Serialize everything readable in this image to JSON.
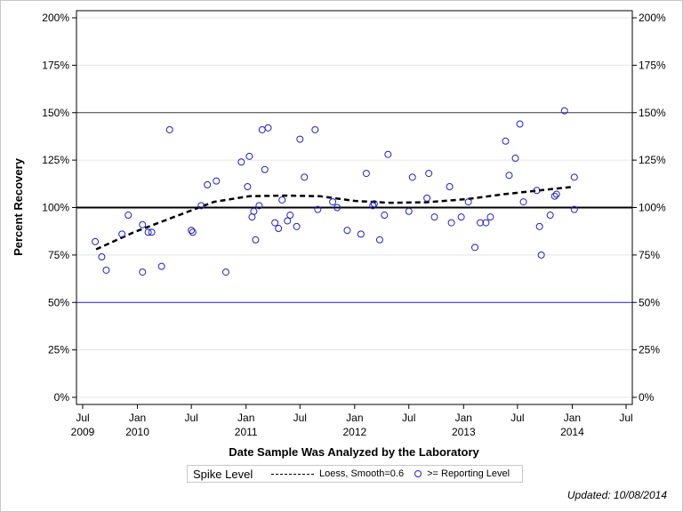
{
  "chart_data": {
    "type": "scatter",
    "xlabel": "Date Sample Was Analyzed by the Laboratory",
    "ylabel": "Percent Recovery",
    "xlim": [
      "2009-06-10",
      "2014-07-20"
    ],
    "ylim": [
      0,
      200
    ],
    "grid": true,
    "y_ticks": [
      "0%",
      "25%",
      "50%",
      "75%",
      "100%",
      "125%",
      "150%",
      "175%",
      "200%"
    ],
    "y_tick_values": [
      0,
      25,
      50,
      75,
      100,
      125,
      150,
      175,
      200
    ],
    "x_ticks": [
      {
        "date": "2009-07-01",
        "line1": "Jul",
        "line2": "2009"
      },
      {
        "date": "2010-01-01",
        "line1": "Jan",
        "line2": "2010"
      },
      {
        "date": "2010-07-01",
        "line1": "Jul",
        "line2": ""
      },
      {
        "date": "2011-01-01",
        "line1": "Jan",
        "line2": "2011"
      },
      {
        "date": "2011-07-01",
        "line1": "Jul",
        "line2": ""
      },
      {
        "date": "2012-01-01",
        "line1": "Jan",
        "line2": "2012"
      },
      {
        "date": "2012-07-01",
        "line1": "Jul",
        "line2": ""
      },
      {
        "date": "2013-01-01",
        "line1": "Jan",
        "line2": "2013"
      },
      {
        "date": "2013-07-01",
        "line1": "Jul",
        "line2": ""
      },
      {
        "date": "2014-01-01",
        "line1": "Jan",
        "line2": "2014"
      },
      {
        "date": "2014-07-01",
        "line1": "Jul",
        "line2": ""
      }
    ],
    "reference_lines": [
      {
        "value": 150,
        "color": "#404040"
      },
      {
        "value": 100,
        "color": "#000000"
      },
      {
        "value": 50,
        "color": "#2020d0"
      }
    ],
    "series": [
      {
        "name": ">= Reporting Level",
        "color": "#2020d0",
        "marker": "open-circle",
        "points": [
          [
            "2009-08-12",
            82
          ],
          [
            "2009-09-03",
            74
          ],
          [
            "2009-09-18",
            67
          ],
          [
            "2009-11-10",
            86
          ],
          [
            "2009-12-01",
            96
          ],
          [
            "2010-01-18",
            66
          ],
          [
            "2010-01-18",
            91
          ],
          [
            "2010-02-06",
            87
          ],
          [
            "2010-02-18",
            87
          ],
          [
            "2010-03-23",
            69
          ],
          [
            "2010-04-19",
            141
          ],
          [
            "2010-07-01",
            88
          ],
          [
            "2010-07-06",
            87
          ],
          [
            "2010-08-03",
            101
          ],
          [
            "2010-08-24",
            112
          ],
          [
            "2010-09-23",
            114
          ],
          [
            "2010-10-25",
            66
          ],
          [
            "2010-12-16",
            124
          ],
          [
            "2011-01-06",
            111
          ],
          [
            "2011-01-12",
            127
          ],
          [
            "2011-01-21",
            95
          ],
          [
            "2011-01-27",
            98
          ],
          [
            "2011-02-02",
            83
          ],
          [
            "2011-02-14",
            101
          ],
          [
            "2011-02-24",
            141
          ],
          [
            "2011-03-05",
            120
          ],
          [
            "2011-03-16",
            142
          ],
          [
            "2011-04-08",
            92
          ],
          [
            "2011-04-20",
            89
          ],
          [
            "2011-05-02",
            104
          ],
          [
            "2011-05-20",
            93
          ],
          [
            "2011-05-29",
            96
          ],
          [
            "2011-06-20",
            90
          ],
          [
            "2011-07-01",
            136
          ],
          [
            "2011-07-16",
            116
          ],
          [
            "2011-08-21",
            141
          ],
          [
            "2011-08-30",
            99
          ],
          [
            "2011-10-19",
            103
          ],
          [
            "2011-11-03",
            100
          ],
          [
            "2011-12-07",
            88
          ],
          [
            "2012-01-22",
            86
          ],
          [
            "2012-02-09",
            118
          ],
          [
            "2012-03-02",
            101
          ],
          [
            "2012-03-07",
            102
          ],
          [
            "2012-03-25",
            83
          ],
          [
            "2012-04-10",
            96
          ],
          [
            "2012-04-22",
            128
          ],
          [
            "2012-07-01",
            98
          ],
          [
            "2012-07-13",
            116
          ],
          [
            "2012-08-31",
            105
          ],
          [
            "2012-09-06",
            118
          ],
          [
            "2012-09-25",
            95
          ],
          [
            "2012-11-15",
            111
          ],
          [
            "2012-11-21",
            92
          ],
          [
            "2012-12-24",
            95
          ],
          [
            "2013-01-17",
            103
          ],
          [
            "2013-02-08",
            79
          ],
          [
            "2013-02-26",
            92
          ],
          [
            "2013-03-17",
            92
          ],
          [
            "2013-04-01",
            95
          ],
          [
            "2013-05-22",
            135
          ],
          [
            "2013-06-03",
            117
          ],
          [
            "2013-06-24",
            126
          ],
          [
            "2013-07-09",
            144
          ],
          [
            "2013-07-21",
            103
          ],
          [
            "2013-09-04",
            109
          ],
          [
            "2013-09-13",
            90
          ],
          [
            "2013-09-19",
            75
          ],
          [
            "2013-10-19",
            96
          ],
          [
            "2013-11-03",
            106
          ],
          [
            "2013-11-09",
            107
          ],
          [
            "2013-12-06",
            151
          ],
          [
            "2014-01-08",
            116
          ],
          [
            "2014-01-08",
            99
          ]
        ]
      },
      {
        "name": "Loess, Smooth=0.6",
        "color": "#000000",
        "style": "dashed",
        "points": [
          [
            "2009-08-15",
            78
          ],
          [
            "2009-12-20",
            87
          ],
          [
            "2010-05-20",
            96
          ],
          [
            "2010-09-15",
            103
          ],
          [
            "2011-01-12",
            106
          ],
          [
            "2011-05-10",
            106.3
          ],
          [
            "2011-09-05",
            106
          ],
          [
            "2012-01-01",
            103.5
          ],
          [
            "2012-05-01",
            102.5
          ],
          [
            "2012-09-01",
            102.8
          ],
          [
            "2013-01-15",
            104.5
          ],
          [
            "2013-05-15",
            107
          ],
          [
            "2013-09-10",
            109
          ],
          [
            "2014-01-08",
            111
          ]
        ]
      }
    ]
  },
  "legend": {
    "title": "Spike Level",
    "loess_label": "Loess, Smooth=0.6",
    "points_label": ">= Reporting Level"
  },
  "footer": {
    "updated": "Updated: 10/08/2014"
  }
}
